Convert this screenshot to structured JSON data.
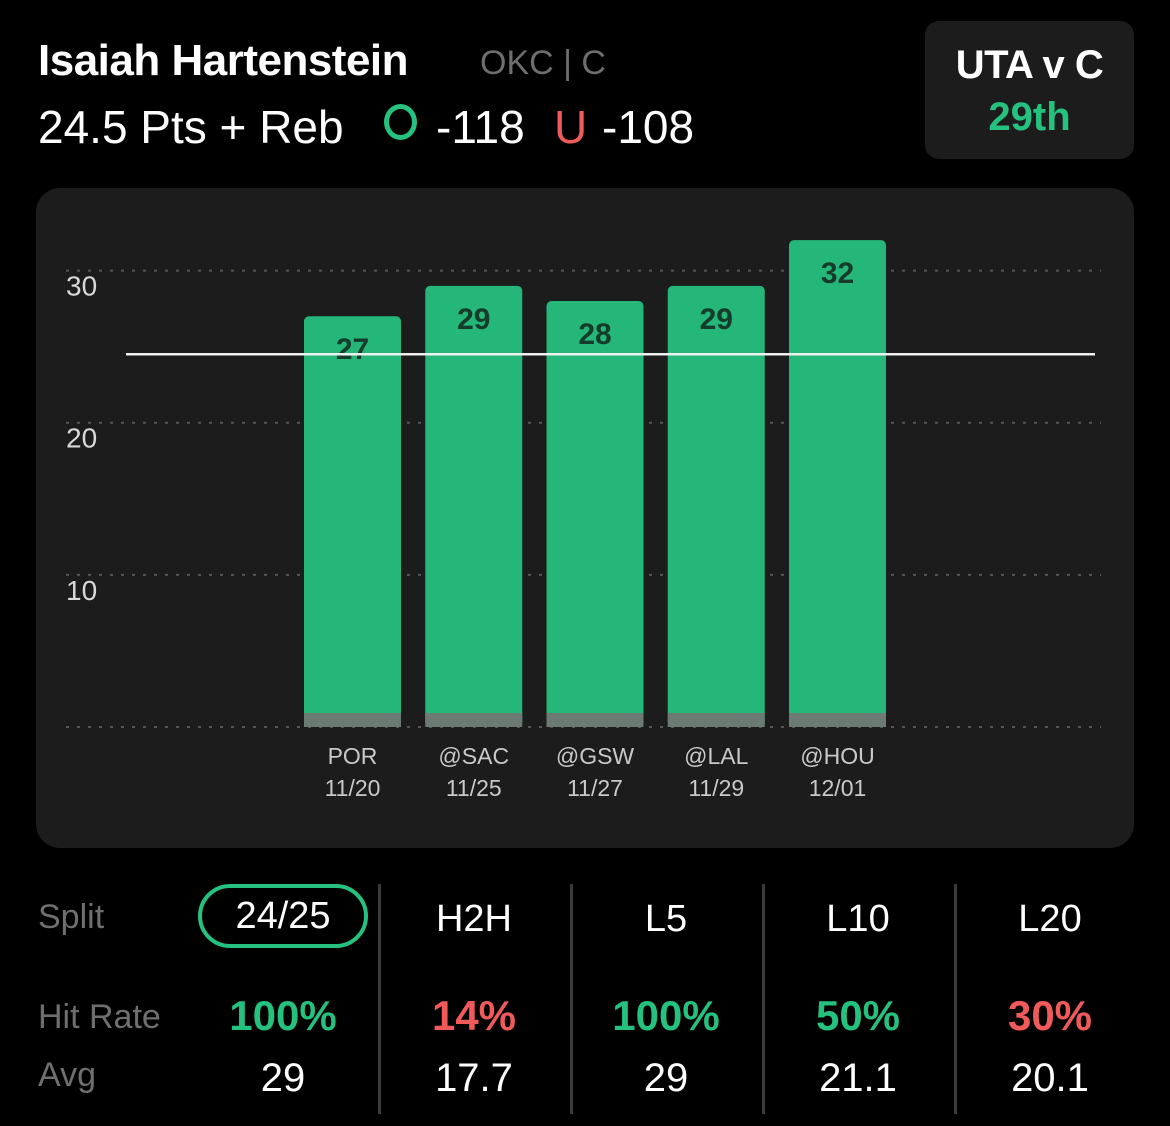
{
  "header": {
    "player": "Isaiah Hartenstein",
    "team_pos": "OKC | C",
    "prop": "24.5 Pts + Reb",
    "over_odds": "-118",
    "under_letter": "U",
    "under_odds": "-108",
    "over_color": "#25c17e",
    "under_color": "#f15a5a"
  },
  "matchup": {
    "title": "UTA v C",
    "rank": "29th"
  },
  "chart_data": {
    "type": "bar",
    "categories": [
      "POR 11/20",
      "@SAC 11/25",
      "@GSW 11/27",
      "@LAL 11/29",
      "@HOU 12/01"
    ],
    "category_lines": [
      [
        "POR",
        "11/20"
      ],
      [
        "@SAC",
        "11/25"
      ],
      [
        "@GSW",
        "11/27"
      ],
      [
        "@LAL",
        "11/29"
      ],
      [
        "@HOU",
        "12/01"
      ]
    ],
    "values": [
      27,
      29,
      28,
      29,
      32
    ],
    "data_labels": [
      "27",
      "29",
      "28",
      "29",
      "32"
    ],
    "line_value": 24.5,
    "y_ticks": [
      10,
      20,
      30
    ],
    "y_tick_labels": [
      "10",
      "20",
      "30"
    ],
    "ylim": [
      0,
      30.5
    ],
    "grid": true,
    "bar_color": "#25b679",
    "title": "",
    "xlabel": "",
    "ylabel": ""
  },
  "stats": {
    "labels": {
      "split": "Split",
      "hit_rate": "Hit Rate",
      "avg": "Avg"
    },
    "columns": [
      {
        "head": "24/25",
        "hit": "100%",
        "hit_color": "#25c17e",
        "avg": "29",
        "active": true
      },
      {
        "head": "H2H",
        "hit": "14%",
        "hit_color": "#f15a5a",
        "avg": "17.7",
        "active": false
      },
      {
        "head": "L5",
        "hit": "100%",
        "hit_color": "#25c17e",
        "avg": "29",
        "active": false
      },
      {
        "head": "L10",
        "hit": "50%",
        "hit_color": "#25c17e",
        "avg": "21.1",
        "active": false
      },
      {
        "head": "L20",
        "hit": "30%",
        "hit_color": "#f15a5a",
        "avg": "20.1",
        "active": false
      }
    ]
  }
}
